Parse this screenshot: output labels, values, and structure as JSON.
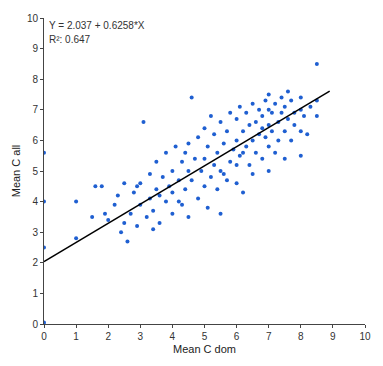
{
  "chart_data": {
    "type": "scatter",
    "x_label": "Mean C dom",
    "y_label": "Mean C all",
    "annotations": [
      "Y = 2.037 + 0.6258*X",
      "R²: 0.647"
    ],
    "xlim": [
      0,
      10
    ],
    "ylim": [
      0,
      10
    ],
    "xticks": [
      0,
      1,
      2,
      3,
      4,
      5,
      6,
      7,
      8,
      9,
      10
    ],
    "yticks": [
      0,
      1,
      2,
      3,
      4,
      5,
      6,
      7,
      8,
      9,
      10
    ],
    "grid": false,
    "series": [
      {
        "type": "scatter",
        "color": "#1f5fd1",
        "marker": "circle",
        "x": [
          0,
          0,
          0,
          0,
          1,
          1,
          1.6,
          1.8,
          1.5,
          1.9,
          2.0,
          2.2,
          2.3,
          2.4,
          2.5,
          2.5,
          2.6,
          2.7,
          2.8,
          2.9,
          3.0,
          3.0,
          3.1,
          3.2,
          3.3,
          3.3,
          3.4,
          3.5,
          3.5,
          3.6,
          3.7,
          3.8,
          3.8,
          3.9,
          4.0,
          4.0,
          4.0,
          4.1,
          4.2,
          4.3,
          4.3,
          4.4,
          4.5,
          4.5,
          4.5,
          4.6,
          4.6,
          4.7,
          4.8,
          4.8,
          4.9,
          5.0,
          5.0,
          5.0,
          5.1,
          5.1,
          5.2,
          5.3,
          5.3,
          5.4,
          5.4,
          5.5,
          5.5,
          5.5,
          5.6,
          5.7,
          5.7,
          5.8,
          5.8,
          5.9,
          6.0,
          6.0,
          6.0,
          6.0,
          6.1,
          6.1,
          6.2,
          6.2,
          6.3,
          6.3,
          6.4,
          6.4,
          6.5,
          6.5,
          6.5,
          6.6,
          6.6,
          6.7,
          6.7,
          6.8,
          6.8,
          6.9,
          6.9,
          7.0,
          7.0,
          7.0,
          7.0,
          7.0,
          7.1,
          7.1,
          7.2,
          7.2,
          7.3,
          7.3,
          7.4,
          7.4,
          7.5,
          7.5,
          7.5,
          7.6,
          7.7,
          7.7,
          7.8,
          7.8,
          8.0,
          8.0,
          8.0,
          8.0,
          8.1,
          8.2,
          8.3,
          8.5,
          8.5,
          8.5,
          3.6,
          4.2,
          5.6,
          6.2,
          6.8,
          7.6,
          5.2,
          4.4,
          2.9,
          3.4
        ],
        "values": [
          5.6,
          4.0,
          2.5,
          0.05,
          2.8,
          4.0,
          4.5,
          4.5,
          3.5,
          3.6,
          3.4,
          3.9,
          4.2,
          3.0,
          3.3,
          4.6,
          2.7,
          3.6,
          4.3,
          3.2,
          3.9,
          4.6,
          6.6,
          3.5,
          4.1,
          4.9,
          3.7,
          4.4,
          5.3,
          3.3,
          4.8,
          4.0,
          5.6,
          4.5,
          3.6,
          4.3,
          5.0,
          5.8,
          4.7,
          3.9,
          5.3,
          4.4,
          5.0,
          5.9,
          3.5,
          7.4,
          4.7,
          5.4,
          4.1,
          6.1,
          5.0,
          4.5,
          5.4,
          6.4,
          3.8,
          5.8,
          4.8,
          5.2,
          6.2,
          4.4,
          5.6,
          5.0,
          6.6,
          3.6,
          5.9,
          4.7,
          6.3,
          5.3,
          6.9,
          5.7,
          4.6,
          5.2,
          6.0,
          6.7,
          5.5,
          7.1,
          6.3,
          4.3,
          5.8,
          6.9,
          5.2,
          6.5,
          6.0,
          7.2,
          4.9,
          6.6,
          5.6,
          6.2,
          7.0,
          5.4,
          6.8,
          6.1,
          7.3,
          5.0,
          5.8,
          6.5,
          7.0,
          7.5,
          6.3,
          6.9,
          5.6,
          7.2,
          6.6,
          6.0,
          6.9,
          7.4,
          5.4,
          6.3,
          7.1,
          6.7,
          6.0,
          7.3,
          6.5,
          6.9,
          5.5,
          6.3,
          7.0,
          7.4,
          6.8,
          6.2,
          7.1,
          8.5,
          7.3,
          6.8,
          4.2,
          4.0,
          4.9,
          5.6,
          6.4,
          7.6,
          6.8,
          5.6,
          4.5,
          3.1
        ]
      },
      {
        "type": "line",
        "color": "#000000",
        "line_style": "solid",
        "x": [
          0,
          8.9
        ],
        "values": [
          2.037,
          7.607
        ]
      }
    ]
  }
}
